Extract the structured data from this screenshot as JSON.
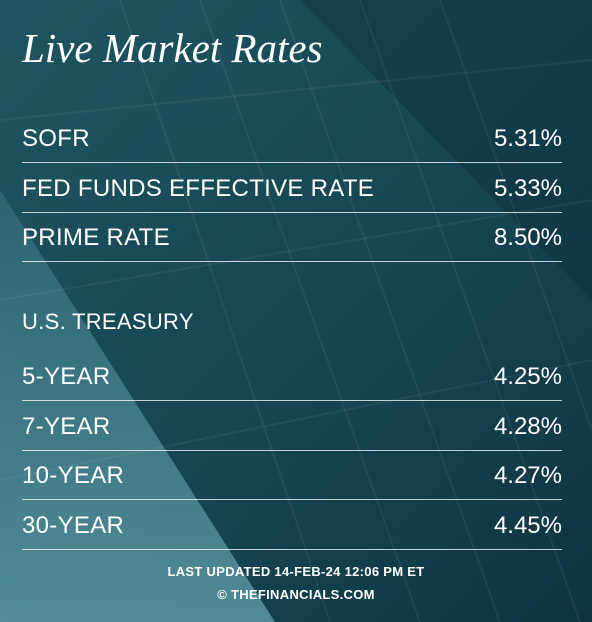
{
  "header": {
    "title": "Live Market Rates"
  },
  "rates": [
    {
      "label": "SOFR",
      "value": "5.31%"
    },
    {
      "label": "FED FUNDS EFFECTIVE RATE",
      "value": "5.33%"
    },
    {
      "label": "PRIME RATE",
      "value": "8.50%"
    }
  ],
  "treasury": {
    "heading": "U.S. TREASURY",
    "rows": [
      {
        "label": "5-YEAR",
        "value": "4.25%"
      },
      {
        "label": "7-YEAR",
        "value": "4.28%"
      },
      {
        "label": "10-YEAR",
        "value": "4.27%"
      },
      {
        "label": "30-YEAR",
        "value": "4.45%"
      }
    ]
  },
  "footer": {
    "updated": "LAST UPDATED 14-FEB-24 12:06 PM ET",
    "source": "© THEFINANCIALS.COM"
  }
}
